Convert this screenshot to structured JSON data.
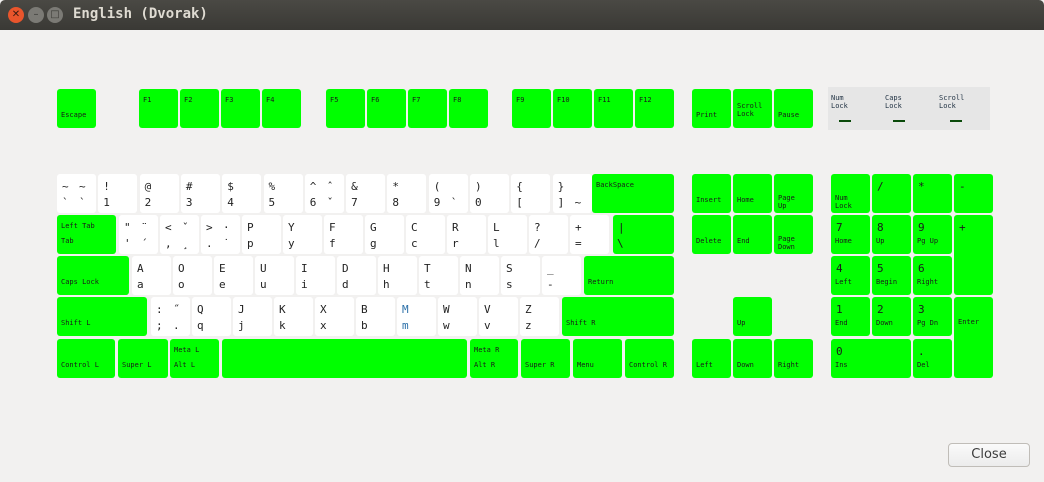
{
  "window": {
    "title": "English (Dvorak)",
    "close_icon": "close-icon",
    "minimize_icon": "minimize-icon",
    "maximize_icon": "maximize-icon"
  },
  "colors": {
    "modifier_key": "#00ff00",
    "char_key": "#ffffff",
    "background": "#f2f1f0"
  },
  "indicators": [
    {
      "label": "Num\nLock",
      "on": false
    },
    {
      "label": "Caps\nLock",
      "on": false
    },
    {
      "label": "Scroll\nLock",
      "on": false
    }
  ],
  "keys": [
    {
      "tl": "",
      "bl": "Escape",
      "mod": true
    },
    {
      "tl": "F1",
      "bl": "",
      "mod": true
    },
    {
      "tl": "F2",
      "bl": "",
      "mod": true
    },
    {
      "tl": "F3",
      "bl": "",
      "mod": true
    },
    {
      "tl": "F4",
      "bl": "",
      "mod": true
    },
    {
      "tl": "F5",
      "bl": "",
      "mod": true
    },
    {
      "tl": "F6",
      "bl": "",
      "mod": true
    },
    {
      "tl": "F7",
      "bl": "",
      "mod": true
    },
    {
      "tl": "F8",
      "bl": "",
      "mod": true
    },
    {
      "tl": "F9",
      "bl": "",
      "mod": true
    },
    {
      "tl": "F10",
      "bl": "",
      "mod": true
    },
    {
      "tl": "F11",
      "bl": "",
      "mod": true
    },
    {
      "tl": "F12",
      "bl": "",
      "mod": true
    },
    {
      "tl": "",
      "bl": "Print",
      "mod": true
    },
    {
      "ml": "Scroll\nLock",
      "mod": true
    },
    {
      "tl": "",
      "bl": "Pause",
      "mod": true
    },
    {
      "tl": "~",
      "tr": "~",
      "bl": "`",
      "br": "`"
    },
    {
      "tl": "!",
      "bl": "1"
    },
    {
      "tl": "@",
      "bl": "2"
    },
    {
      "tl": "#",
      "bl": "3"
    },
    {
      "tl": "$",
      "bl": "4"
    },
    {
      "tl": "%",
      "bl": "5"
    },
    {
      "tl": "^",
      "tr": "ˆ",
      "bl": "6",
      "br": "ˇ"
    },
    {
      "tl": "&",
      "bl": "7"
    },
    {
      "tl": "*",
      "bl": "8"
    },
    {
      "tl": "(",
      "bl": "9",
      "br": "`"
    },
    {
      "tl": ")",
      "bl": "0"
    },
    {
      "tl": "{",
      "bl": "["
    },
    {
      "tl": "}",
      "bl": "]",
      "br": "~"
    },
    {
      "tl": "BackSpace",
      "bl": "",
      "mod": true
    },
    {
      "tl": "Left Tab",
      "bl": "Tab",
      "mod": true
    },
    {
      "tl": "\"",
      "tr": "¨",
      "bl": "'",
      "br": "´"
    },
    {
      "tl": "<",
      "tr": "ˇ",
      "bl": ",",
      "br": "¸"
    },
    {
      "tl": ">",
      "tr": "·",
      "bl": ".",
      "br": "˙"
    },
    {
      "tl": "P",
      "bl": "p"
    },
    {
      "tl": "Y",
      "bl": "y"
    },
    {
      "tl": "F",
      "bl": "f"
    },
    {
      "tl": "G",
      "bl": "g"
    },
    {
      "tl": "C",
      "bl": "c"
    },
    {
      "tl": "R",
      "bl": "r"
    },
    {
      "tl": "L",
      "bl": "l"
    },
    {
      "tl": "?",
      "bl": "/"
    },
    {
      "tl": "+",
      "bl": "="
    },
    {
      "num": "|",
      "bl2": "\\",
      "mod": true
    },
    {
      "tl": "",
      "bl": "Caps Lock",
      "mod": true
    },
    {
      "tl": "A",
      "bl": "a"
    },
    {
      "tl": "O",
      "bl": "o"
    },
    {
      "tl": "E",
      "bl": "e"
    },
    {
      "tl": "U",
      "bl": "u"
    },
    {
      "tl": "I",
      "bl": "i"
    },
    {
      "tl": "D",
      "bl": "d"
    },
    {
      "tl": "H",
      "bl": "h"
    },
    {
      "tl": "T",
      "bl": "t"
    },
    {
      "tl": "N",
      "bl": "n"
    },
    {
      "tl": "S",
      "bl": "s"
    },
    {
      "tl": "_",
      "bl": "-"
    },
    {
      "tl": "",
      "bl": "Return",
      "mod": true
    },
    {
      "tl": "",
      "bl": "Shift L",
      "mod": true
    },
    {
      "tl": ":",
      "tr": "˝",
      "bl": ";",
      "br": "."
    },
    {
      "tl": "Q",
      "bl": "q"
    },
    {
      "tl": "J",
      "bl": "j"
    },
    {
      "tl": "K",
      "bl": "k"
    },
    {
      "tl": "X",
      "bl": "x"
    },
    {
      "tl": "B",
      "bl": "b"
    },
    {
      "tl": "M",
      "bl": "m"
    },
    {
      "tl": "W",
      "bl": "w"
    },
    {
      "tl": "V",
      "bl": "v"
    },
    {
      "tl": "Z",
      "bl": "z"
    },
    {
      "tl": "",
      "bl": "Shift R",
      "mod": true
    },
    {
      "tl": "",
      "bl": "Control L",
      "mod": true
    },
    {
      "tl": "",
      "bl": "Super L",
      "mod": true
    },
    {
      "tl": "Meta L",
      "bl": "Alt L",
      "mod": true
    },
    {
      "tl": "",
      "bl": "",
      "mod": true
    },
    {
      "tl": "Meta R",
      "bl": "Alt R",
      "mod": true
    },
    {
      "tl": "",
      "bl": "Super R",
      "mod": true
    },
    {
      "tl": "",
      "bl": "Menu",
      "mod": true
    },
    {
      "tl": "",
      "bl": "Control R",
      "mod": true
    },
    {
      "tl": "",
      "bl": "Insert",
      "mod": true
    },
    {
      "tl": "",
      "bl": "Home",
      "mod": true
    },
    {
      "mlb": "Page\nUp",
      "mod": true
    },
    {
      "tl": "",
      "bl": "Delete",
      "mod": true
    },
    {
      "tl": "",
      "bl": "End",
      "mod": true
    },
    {
      "mlb": "Page\nDown",
      "mod": true
    },
    {
      "tl": "",
      "bl": "Up",
      "mod": true
    },
    {
      "tl": "",
      "bl": "Left",
      "mod": true
    },
    {
      "tl": "",
      "bl": "Down",
      "mod": true
    },
    {
      "tl": "",
      "bl": "Right",
      "mod": true
    },
    {
      "mlb": "Num\nLock",
      "mod": true
    },
    {
      "num": "/",
      "mod": true
    },
    {
      "num": "*",
      "mod": true
    },
    {
      "num": "-",
      "mod": true
    },
    {
      "num": "7",
      "bl": "Home",
      "mod": true
    },
    {
      "num": "8",
      "bl": "Up",
      "mod": true
    },
    {
      "num": "9",
      "bl": "Pg Up",
      "mod": true
    },
    {
      "num": "+",
      "mod": true
    },
    {
      "num": "4",
      "bl": "Left",
      "mod": true
    },
    {
      "num": "5",
      "bl": "Begin",
      "mod": true
    },
    {
      "num": "6",
      "bl": "Right",
      "mod": true
    },
    {
      "num": "1",
      "bl": "End",
      "mod": true
    },
    {
      "num": "2",
      "bl": "Down",
      "mod": true
    },
    {
      "num": "3",
      "bl": "Pg Dn",
      "mod": true
    },
    {
      "tl": "",
      "ml": "\nEnter",
      "mod": true
    },
    {
      "num": "0",
      "bl": "Ins",
      "mod": true
    },
    {
      "num": ".",
      "bl": "Del",
      "mod": true
    }
  ],
  "close_button": {
    "label": "Close"
  }
}
